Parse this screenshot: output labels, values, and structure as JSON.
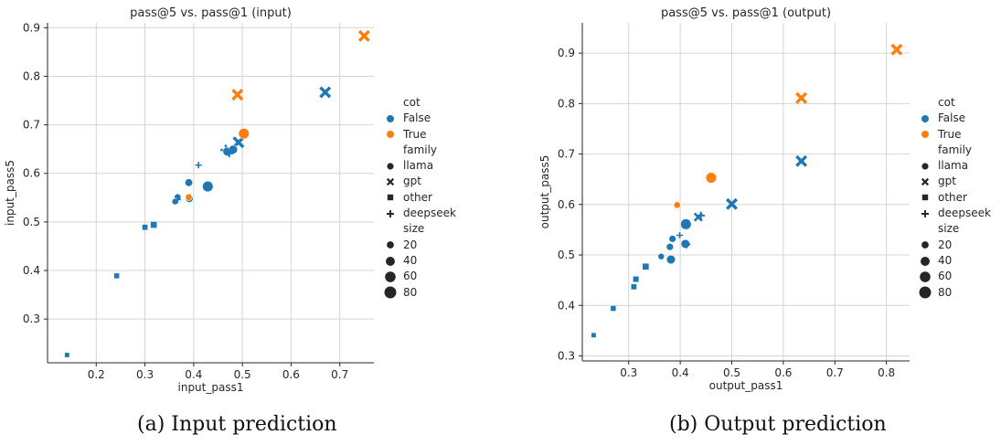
{
  "captions": [
    "(a) Input prediction",
    "(b) Output prediction"
  ],
  "legend": {
    "cot_title": "cot",
    "cot_items": [
      {
        "label": "False",
        "color": "#1f77b4"
      },
      {
        "label": "True",
        "color": "#ff7f0e"
      }
    ],
    "family_title": "family",
    "family_items": [
      {
        "label": "llama",
        "marker": "circle"
      },
      {
        "label": "gpt",
        "marker": "x"
      },
      {
        "label": "other",
        "marker": "square"
      },
      {
        "label": "deepseek",
        "marker": "plus"
      }
    ],
    "size_title": "size",
    "size_items": [
      {
        "label": "20",
        "size": 20
      },
      {
        "label": "40",
        "size": 40
      },
      {
        "label": "60",
        "size": 60
      },
      {
        "label": "80",
        "size": 80
      }
    ]
  },
  "colors": {
    "False": "#1f77b4",
    "True": "#ff7f0e",
    "grid": "#d4d4d4",
    "axis": "#262626"
  },
  "chart_data": [
    {
      "type": "scatter",
      "title": "pass@5 vs. pass@1 (input)",
      "xlabel": "input_pass1",
      "ylabel": "input_pass5",
      "xlim": [
        0.1,
        0.77
      ],
      "ylim": [
        0.21,
        0.91
      ],
      "xticks": [
        0.2,
        0.3,
        0.4,
        0.5,
        0.6,
        0.7
      ],
      "yticks": [
        0.3,
        0.4,
        0.5,
        0.6,
        0.7,
        0.8,
        0.9
      ],
      "grid": true,
      "points": [
        {
          "x": 0.14,
          "y": 0.226,
          "cot": "False",
          "family": "other",
          "size": 3
        },
        {
          "x": 0.242,
          "y": 0.389,
          "cot": "False",
          "family": "other",
          "size": 5
        },
        {
          "x": 0.3,
          "y": 0.489,
          "cot": "False",
          "family": "other",
          "size": 6
        },
        {
          "x": 0.318,
          "y": 0.494,
          "cot": "False",
          "family": "other",
          "size": 10
        },
        {
          "x": 0.362,
          "y": 0.542,
          "cot": "False",
          "family": "llama",
          "size": 7
        },
        {
          "x": 0.367,
          "y": 0.551,
          "cot": "False",
          "family": "llama",
          "size": 8
        },
        {
          "x": 0.367,
          "y": 0.546,
          "cot": "False",
          "family": "deepseek",
          "size": 7
        },
        {
          "x": 0.39,
          "y": 0.581,
          "cot": "False",
          "family": "llama",
          "size": 13
        },
        {
          "x": 0.39,
          "y": 0.551,
          "cot": "True",
          "family": "llama",
          "size": 8
        },
        {
          "x": 0.391,
          "y": 0.548,
          "cot": "False",
          "family": "llama",
          "size": 13
        },
        {
          "x": 0.41,
          "y": 0.617,
          "cot": "False",
          "family": "deepseek",
          "size": 7
        },
        {
          "x": 0.429,
          "y": 0.573,
          "cot": "False",
          "family": "llama",
          "size": 34
        },
        {
          "x": 0.466,
          "y": 0.648,
          "cot": "False",
          "family": "deepseek",
          "size": 33
        },
        {
          "x": 0.469,
          "y": 0.645,
          "cot": "False",
          "family": "llama",
          "size": 20
        },
        {
          "x": 0.473,
          "y": 0.641,
          "cot": "False",
          "family": "deepseek",
          "size": 14
        },
        {
          "x": 0.481,
          "y": 0.649,
          "cot": "False",
          "family": "llama",
          "size": 20
        },
        {
          "x": 0.492,
          "y": 0.664,
          "cot": "False",
          "family": "gpt",
          "size": 40
        },
        {
          "x": 0.503,
          "y": 0.682,
          "cot": "True",
          "family": "llama",
          "size": 34
        },
        {
          "x": 0.49,
          "y": 0.762,
          "cot": "True",
          "family": "gpt",
          "size": 40
        },
        {
          "x": 0.67,
          "y": 0.767,
          "cot": "False",
          "family": "gpt",
          "size": 40
        },
        {
          "x": 0.75,
          "y": 0.883,
          "cot": "True",
          "family": "gpt",
          "size": 40
        }
      ]
    },
    {
      "type": "scatter",
      "title": "pass@5 vs. pass@1 (output)",
      "xlabel": "output_pass1",
      "ylabel": "output_pass5",
      "xlim": [
        0.21,
        0.845
      ],
      "ylim": [
        0.29,
        0.96
      ],
      "xticks": [
        0.3,
        0.4,
        0.5,
        0.6,
        0.7,
        0.8
      ],
      "yticks": [
        0.3,
        0.4,
        0.5,
        0.6,
        0.7,
        0.8,
        0.9
      ],
      "grid": true,
      "points": [
        {
          "x": 0.232,
          "y": 0.341,
          "cot": "False",
          "family": "other",
          "size": 3
        },
        {
          "x": 0.27,
          "y": 0.394,
          "cot": "False",
          "family": "other",
          "size": 5
        },
        {
          "x": 0.31,
          "y": 0.437,
          "cot": "False",
          "family": "other",
          "size": 6
        },
        {
          "x": 0.314,
          "y": 0.452,
          "cot": "False",
          "family": "other",
          "size": 7
        },
        {
          "x": 0.333,
          "y": 0.477,
          "cot": "False",
          "family": "other",
          "size": 10
        },
        {
          "x": 0.363,
          "y": 0.497,
          "cot": "False",
          "family": "llama",
          "size": 7
        },
        {
          "x": 0.38,
          "y": 0.516,
          "cot": "False",
          "family": "llama",
          "size": 10
        },
        {
          "x": 0.382,
          "y": 0.491,
          "cot": "False",
          "family": "llama",
          "size": 20
        },
        {
          "x": 0.385,
          "y": 0.532,
          "cot": "False",
          "family": "llama",
          "size": 10
        },
        {
          "x": 0.394,
          "y": 0.599,
          "cot": "True",
          "family": "llama",
          "size": 8
        },
        {
          "x": 0.399,
          "y": 0.539,
          "cot": "False",
          "family": "deepseek",
          "size": 7
        },
        {
          "x": 0.41,
          "y": 0.522,
          "cot": "False",
          "family": "llama",
          "size": 20
        },
        {
          "x": 0.412,
          "y": 0.521,
          "cot": "False",
          "family": "deepseek",
          "size": 14
        },
        {
          "x": 0.411,
          "y": 0.561,
          "cot": "False",
          "family": "llama",
          "size": 34
        },
        {
          "x": 0.435,
          "y": 0.575,
          "cot": "False",
          "family": "gpt",
          "size": 20
        },
        {
          "x": 0.44,
          "y": 0.578,
          "cot": "False",
          "family": "deepseek",
          "size": 14
        },
        {
          "x": 0.46,
          "y": 0.653,
          "cot": "True",
          "family": "llama",
          "size": 34
        },
        {
          "x": 0.5,
          "y": 0.601,
          "cot": "False",
          "family": "gpt",
          "size": 40
        },
        {
          "x": 0.635,
          "y": 0.686,
          "cot": "False",
          "family": "gpt",
          "size": 40
        },
        {
          "x": 0.635,
          "y": 0.811,
          "cot": "True",
          "family": "gpt",
          "size": 40
        },
        {
          "x": 0.82,
          "y": 0.907,
          "cot": "True",
          "family": "gpt",
          "size": 40
        }
      ]
    }
  ]
}
